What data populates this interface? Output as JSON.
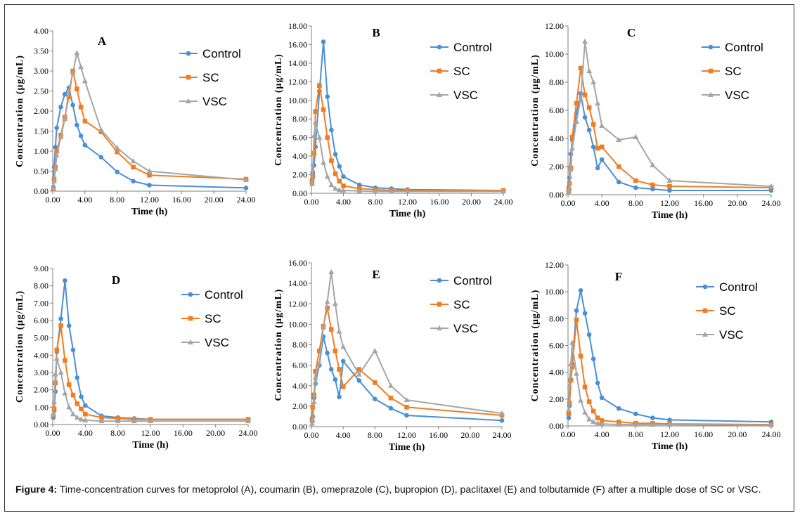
{
  "caption": {
    "label": "Figure 4:",
    "text": " Time-concentration curves for metoprolol (A), coumarin (B), omeprazole (C), bupropion (D), paclitaxel (E) and tolbutamide (F) after a multiple dose of SC or VSC."
  },
  "colors": {
    "Control": "#4a8fd6",
    "SC": "#f07d22",
    "VSC": "#a5a5a5"
  },
  "chart_data": [
    {
      "type": "line",
      "title": "A",
      "xlabel": "Time (h)",
      "ylabel": "Concentration (μg/mL)",
      "xlim": [
        0,
        24
      ],
      "ylim": [
        0,
        4
      ],
      "xticks": [
        "0.00",
        "4.00",
        "8.00",
        "12.00",
        "16.00",
        "20.00",
        "24.00"
      ],
      "yticks": [
        "0.00",
        "0.50",
        "1.00",
        "1.50",
        "2.00",
        "2.50",
        "3.00",
        "3.50",
        "4.00"
      ],
      "legend": [
        "Control",
        "SC",
        "VSC"
      ],
      "series": [
        {
          "name": "Control",
          "x": [
            0.08,
            0.17,
            0.33,
            0.5,
            1,
            1.5,
            2,
            2.5,
            3,
            3.5,
            4,
            6,
            8,
            10,
            12,
            24
          ],
          "y": [
            0.1,
            0.6,
            1.1,
            1.58,
            2.1,
            2.42,
            2.58,
            2.15,
            1.65,
            1.38,
            1.15,
            0.85,
            0.48,
            0.25,
            0.15,
            0.08
          ]
        },
        {
          "name": "SC",
          "x": [
            0.08,
            0.17,
            0.33,
            0.5,
            1,
            1.5,
            2,
            2.5,
            3,
            3.5,
            4,
            6,
            8,
            10,
            12,
            24
          ],
          "y": [
            0.05,
            0.3,
            0.6,
            1.0,
            1.4,
            1.85,
            2.35,
            3.0,
            2.55,
            2.1,
            1.75,
            1.48,
            0.98,
            0.6,
            0.4,
            0.3
          ]
        },
        {
          "name": "VSC",
          "x": [
            0.08,
            0.17,
            0.33,
            0.5,
            1,
            1.5,
            2,
            2.5,
            3,
            3.5,
            4,
            6,
            8,
            10,
            12,
            24
          ],
          "y": [
            0.08,
            0.25,
            0.55,
            0.9,
            1.35,
            1.8,
            2.5,
            2.95,
            3.45,
            3.1,
            2.75,
            1.53,
            1.08,
            0.75,
            0.5,
            0.28
          ]
        }
      ]
    },
    {
      "type": "line",
      "title": "B",
      "xlabel": "Time (h)",
      "ylabel": "Concentration (μg/mL)",
      "xlim": [
        0,
        24
      ],
      "ylim": [
        0,
        18
      ],
      "xticks": [
        "0.00",
        "4.00",
        "8.00",
        "12.00",
        "16.00",
        "20.00",
        "24.00"
      ],
      "yticks": [
        "0.00",
        "2.00",
        "4.00",
        "6.00",
        "8.00",
        "10.00",
        "12.00",
        "14.00",
        "16.00",
        "18.00"
      ],
      "legend": [
        "Control",
        "SC",
        "VSC"
      ],
      "series": [
        {
          "name": "Control",
          "x": [
            0.08,
            0.17,
            0.33,
            0.5,
            1,
            1.5,
            2,
            2.5,
            3,
            3.5,
            4,
            6,
            8,
            10,
            12,
            24
          ],
          "y": [
            1.5,
            2.2,
            3.0,
            5.0,
            11.0,
            16.3,
            10.4,
            6.8,
            4.2,
            2.9,
            1.8,
            0.9,
            0.6,
            0.5,
            0.4,
            0.3
          ]
        },
        {
          "name": "SC",
          "x": [
            0.08,
            0.17,
            0.33,
            0.5,
            1,
            1.5,
            2,
            2.5,
            3,
            3.5,
            4,
            6,
            8,
            10,
            12,
            24
          ],
          "y": [
            1.2,
            1.8,
            4.3,
            8.8,
            11.6,
            9.0,
            6.0,
            3.5,
            2.1,
            1.3,
            0.8,
            0.5,
            0.4,
            0.3,
            0.3,
            0.3
          ]
        },
        {
          "name": "VSC",
          "x": [
            0.08,
            0.17,
            0.33,
            0.5,
            1,
            1.5,
            2,
            2.5,
            3,
            3.5,
            4,
            6,
            8,
            10,
            12,
            24
          ],
          "y": [
            1.0,
            2.5,
            6.2,
            7.6,
            6.0,
            3.3,
            1.8,
            0.9,
            0.5,
            0.35,
            0.3,
            0.25,
            0.2,
            0.2,
            0.2,
            0.2
          ]
        }
      ]
    },
    {
      "type": "line",
      "title": "C",
      "xlabel": "Time (h)",
      "ylabel": "Concentration (μg/mL)",
      "xlim": [
        0,
        24
      ],
      "ylim": [
        0,
        12
      ],
      "xticks": [
        "0.00",
        "4.00",
        "8.00",
        "12.00",
        "16.00",
        "20.00",
        "24.00"
      ],
      "yticks": [
        "0.00",
        "2.00",
        "4.00",
        "6.00",
        "8.00",
        "10.00",
        "12.00"
      ],
      "legend": [
        "Control",
        "SC",
        "VSC"
      ],
      "series": [
        {
          "name": "Control",
          "x": [
            0.08,
            0.17,
            0.33,
            0.5,
            1,
            1.5,
            2,
            2.5,
            3,
            3.5,
            4,
            6,
            8,
            10,
            12,
            24
          ],
          "y": [
            0.5,
            1.2,
            2.9,
            3.9,
            5.8,
            7.2,
            5.5,
            4.6,
            3.4,
            1.9,
            2.5,
            0.9,
            0.5,
            0.4,
            0.3,
            0.3
          ]
        },
        {
          "name": "SC",
          "x": [
            0.08,
            0.17,
            0.33,
            0.5,
            1,
            1.5,
            2,
            2.5,
            3,
            3.5,
            4,
            6,
            8,
            10,
            12,
            24
          ],
          "y": [
            0.3,
            0.8,
            1.9,
            4.1,
            6.5,
            9.0,
            7.1,
            6.2,
            5.0,
            3.3,
            3.4,
            2.0,
            1.0,
            0.7,
            0.6,
            0.5
          ]
        },
        {
          "name": "VSC",
          "x": [
            0.08,
            0.17,
            0.33,
            0.5,
            1,
            1.5,
            2,
            2.5,
            3,
            3.5,
            4,
            6,
            8,
            10,
            12,
            24
          ],
          "y": [
            0.2,
            0.5,
            1.8,
            3.3,
            5.2,
            6.8,
            10.9,
            8.8,
            8.0,
            6.5,
            4.9,
            3.9,
            4.1,
            2.1,
            1.0,
            0.6
          ]
        }
      ]
    },
    {
      "type": "line",
      "title": "D",
      "xlabel": "Time (h)",
      "ylabel": "Concentration (μg/mL)",
      "xlim": [
        0,
        24
      ],
      "ylim": [
        0,
        9
      ],
      "xticks": [
        "0.00",
        "4.00",
        "8.00",
        "12.00",
        "16.00",
        "20.00",
        "24.00"
      ],
      "yticks": [
        "0.00",
        "1.00",
        "2.00",
        "3.00",
        "4.00",
        "5.00",
        "6.00",
        "7.00",
        "8.00",
        "9.00"
      ],
      "legend": [
        "Control",
        "SC",
        "VSC"
      ],
      "series": [
        {
          "name": "Control",
          "x": [
            0.08,
            0.17,
            0.33,
            0.5,
            1,
            1.5,
            2,
            2.5,
            3,
            3.5,
            4,
            6,
            8,
            10,
            12,
            24
          ],
          "y": [
            0.4,
            0.8,
            1.9,
            4.2,
            6.1,
            8.3,
            5.7,
            4.3,
            2.7,
            1.6,
            1.1,
            0.5,
            0.4,
            0.35,
            0.3,
            0.3
          ]
        },
        {
          "name": "SC",
          "x": [
            0.08,
            0.17,
            0.33,
            0.5,
            1,
            1.5,
            2,
            2.5,
            3,
            3.5,
            4,
            6,
            8,
            10,
            12,
            24
          ],
          "y": [
            0.5,
            0.9,
            2.4,
            4.3,
            5.7,
            3.7,
            2.3,
            1.7,
            1.2,
            0.9,
            0.6,
            0.4,
            0.35,
            0.3,
            0.3,
            0.3
          ]
        },
        {
          "name": "VSC",
          "x": [
            0.08,
            0.17,
            0.33,
            0.5,
            1,
            1.5,
            2,
            2.5,
            3,
            3.5,
            4,
            6,
            8,
            10,
            12,
            24
          ],
          "y": [
            0.6,
            1.3,
            2.9,
            3.8,
            3.0,
            1.8,
            1.0,
            0.6,
            0.4,
            0.3,
            0.25,
            0.2,
            0.2,
            0.2,
            0.2,
            0.2
          ]
        }
      ]
    },
    {
      "type": "line",
      "title": "E",
      "xlabel": "Time (h)",
      "ylabel": "Concentration (μg/mL)",
      "xlim": [
        0,
        24
      ],
      "ylim": [
        0,
        16
      ],
      "xticks": [
        "0.00",
        "4.00",
        "8.00",
        "12.00",
        "16.00",
        "20.00",
        "24.00"
      ],
      "yticks": [
        "0.00",
        "2.00",
        "4.00",
        "6.00",
        "8.00",
        "10.00",
        "12.00",
        "14.00",
        "16.00"
      ],
      "legend": [
        "Control",
        "SC",
        "VSC"
      ],
      "series": [
        {
          "name": "Control",
          "x": [
            0.08,
            0.17,
            0.33,
            0.5,
            1,
            1.5,
            2,
            2.5,
            3,
            3.5,
            4,
            6,
            8,
            10,
            12,
            24
          ],
          "y": [
            0.5,
            1.0,
            2.8,
            4.2,
            6.0,
            8.8,
            7.2,
            5.6,
            4.6,
            2.9,
            6.4,
            4.5,
            2.7,
            1.8,
            1.1,
            0.6
          ]
        },
        {
          "name": "SC",
          "x": [
            0.08,
            0.17,
            0.33,
            0.5,
            1,
            1.5,
            2,
            2.5,
            3,
            3.5,
            4,
            6,
            8,
            10,
            12,
            24
          ],
          "y": [
            0.7,
            1.9,
            3.1,
            5.4,
            7.4,
            9.8,
            11.6,
            9.5,
            7.4,
            5.6,
            3.9,
            5.6,
            4.3,
            2.8,
            1.9,
            1.1
          ]
        },
        {
          "name": "VSC",
          "x": [
            0.08,
            0.17,
            0.33,
            0.5,
            1,
            1.5,
            2,
            2.5,
            3,
            3.5,
            4,
            6,
            8,
            10,
            12,
            24
          ],
          "y": [
            0.3,
            0.6,
            2.4,
            4.8,
            6.2,
            9.7,
            12.2,
            15.1,
            12.0,
            9.3,
            7.8,
            5.1,
            7.4,
            4.0,
            2.6,
            1.3
          ]
        }
      ]
    },
    {
      "type": "line",
      "title": "F",
      "xlabel": "Time (h)",
      "ylabel": "Concentration (μg/mL)",
      "xlim": [
        0,
        24
      ],
      "ylim": [
        0,
        12
      ],
      "xticks": [
        "0.00",
        "4.00",
        "8.00",
        "12.00",
        "16.00",
        "20.00",
        "24.00"
      ],
      "yticks": [
        "0.00",
        "2.00",
        "4.00",
        "6.00",
        "8.00",
        "10.00",
        "12.00"
      ],
      "legend": [
        "Control",
        "SC",
        "VSC"
      ],
      "series": [
        {
          "name": "Control",
          "x": [
            0.08,
            0.17,
            0.33,
            0.5,
            1,
            1.5,
            2,
            2.5,
            3,
            3.5,
            4,
            6,
            8,
            10,
            12,
            24
          ],
          "y": [
            0.6,
            1.5,
            3.4,
            4.6,
            8.6,
            10.1,
            8.4,
            6.8,
            5.0,
            3.2,
            2.1,
            1.3,
            0.9,
            0.6,
            0.45,
            0.3
          ]
        },
        {
          "name": "SC",
          "x": [
            0.08,
            0.17,
            0.33,
            0.5,
            1,
            1.5,
            2,
            2.5,
            3,
            3.5,
            4,
            6,
            8,
            10,
            12,
            24
          ],
          "y": [
            0.9,
            1.7,
            3.4,
            4.4,
            7.9,
            5.2,
            2.9,
            1.8,
            1.1,
            0.6,
            0.4,
            0.3,
            0.2,
            0.2,
            0.15,
            0.1
          ]
        },
        {
          "name": "VSC",
          "x": [
            0.08,
            0.17,
            0.33,
            0.5,
            1,
            1.5,
            2,
            2.5,
            3,
            3.5,
            4,
            6,
            8,
            10,
            12,
            24
          ],
          "y": [
            1.2,
            3.0,
            4.6,
            6.2,
            3.9,
            1.9,
            1.0,
            0.5,
            0.3,
            0.2,
            0.15,
            0.1,
            0.1,
            0.1,
            0.1,
            0.05
          ]
        }
      ]
    }
  ]
}
